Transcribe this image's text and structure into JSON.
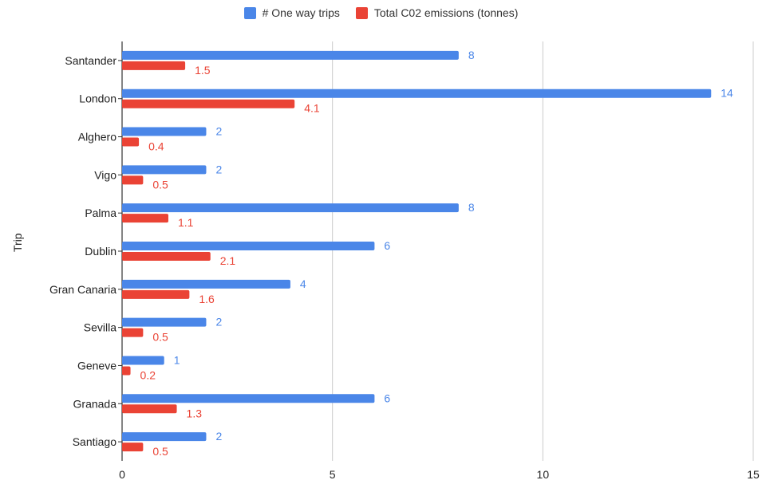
{
  "chart_data": {
    "type": "bar",
    "orientation": "horizontal",
    "categories": [
      "Santander",
      "London",
      "Alghero",
      "Vigo",
      "Palma",
      "Dublin",
      "Gran Canaria",
      "Sevilla",
      "Geneve",
      "Granada",
      "Santiago"
    ],
    "series": [
      {
        "name": "# One way trips",
        "color": "#4a86e8",
        "values": [
          8,
          14,
          2,
          2,
          8,
          6,
          4,
          2,
          1,
          6,
          2
        ]
      },
      {
        "name": "Total C02 emissions (tonnes)",
        "color": "#ea4335",
        "values": [
          1.5,
          4.1,
          0.4,
          0.5,
          1.1,
          2.1,
          1.6,
          0.5,
          0.2,
          1.3,
          0.5
        ]
      }
    ],
    "ylabel": "Trip",
    "xlabel": "",
    "xlim": [
      0,
      15
    ],
    "xticks": [
      "0",
      "5",
      "10",
      "15"
    ],
    "grid": true,
    "legend_position": "top"
  }
}
